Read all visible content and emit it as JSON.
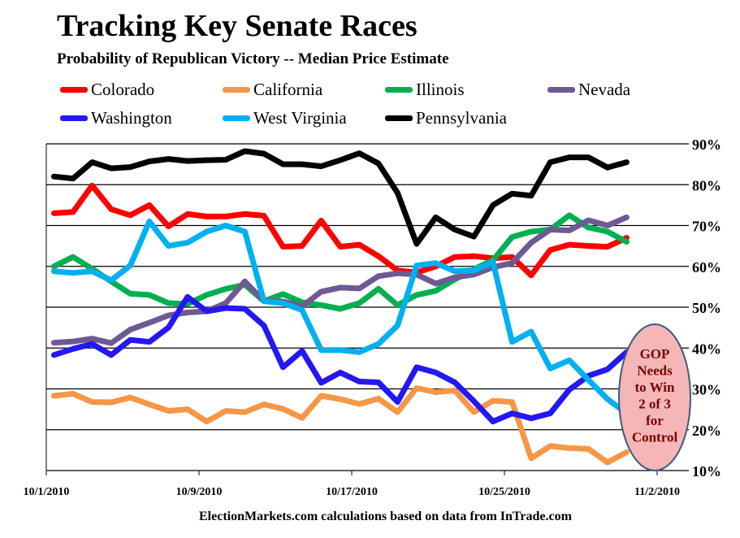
{
  "chart_data": {
    "type": "line",
    "title": "Tracking Key Senate Races",
    "subtitle": "Probability of Republican Victory -- Median Price Estimate",
    "x_tick_labels": [
      "10/1/2010",
      "10/9/2010",
      "10/17/2010",
      "10/25/2010",
      "11/2/2010"
    ],
    "y_tick_labels": [
      "10%",
      "20%",
      "30%",
      "40%",
      "50%",
      "60%",
      "70%",
      "80%",
      "90%"
    ],
    "ylim": [
      10,
      90
    ],
    "y_axis_side": "right",
    "grid": true,
    "legend_position": "top",
    "x": [
      "10/1",
      "10/2",
      "10/3",
      "10/4",
      "10/5",
      "10/6",
      "10/7",
      "10/8",
      "10/9",
      "10/10",
      "10/11",
      "10/12",
      "10/13",
      "10/14",
      "10/15",
      "10/16",
      "10/17",
      "10/18",
      "10/19",
      "10/20",
      "10/21",
      "10/22",
      "10/23",
      "10/24",
      "10/25",
      "10/26",
      "10/27",
      "10/28",
      "10/29",
      "10/30",
      "10/31"
    ],
    "series": [
      {
        "name": "Colorado",
        "color": "#ff0000",
        "values": [
          73,
          73.3,
          79.8,
          74,
          72.5,
          75,
          69.8,
          72.8,
          72.2,
          72.2,
          72.8,
          72.4,
          64.8,
          65,
          71.2,
          64.8,
          65.3,
          62.5,
          59,
          58.5,
          60,
          62.3,
          62.5,
          62,
          62.3,
          57.8,
          64,
          65.3,
          65,
          64.8,
          67
        ]
      },
      {
        "name": "California",
        "color": "#f79646",
        "values": [
          28.3,
          28.8,
          26.8,
          26.7,
          27.9,
          26.2,
          24.6,
          25,
          22,
          24.6,
          24.3,
          26.2,
          25.1,
          22.9,
          28.3,
          27.5,
          26.3,
          27.6,
          24.3,
          30.2,
          29.2,
          29.6,
          24.3,
          27.1,
          26.8,
          13,
          16,
          15.5,
          15.3,
          12,
          14.5
        ]
      },
      {
        "name": "Illinois",
        "color": "#00b050",
        "values": [
          60,
          62.3,
          59.4,
          56.3,
          53.3,
          53,
          51,
          50.8,
          53,
          54.5,
          55.5,
          51.5,
          53.2,
          51.2,
          50.5,
          49.6,
          51,
          54.5,
          50.5,
          53,
          54,
          56.8,
          59.3,
          61.5,
          67.2,
          68.5,
          69,
          72.5,
          69.5,
          68.5,
          66
        ]
      },
      {
        "name": "Nevada",
        "color": "#6e5a93",
        "values": [
          41.3,
          41.6,
          42.3,
          41.2,
          44.5,
          46.2,
          48,
          48.7,
          49,
          51,
          56.3,
          51.5,
          51.4,
          50.2,
          53.8,
          54.8,
          54.6,
          57.6,
          58.3,
          58,
          55.8,
          57.3,
          58,
          59.8,
          60.8,
          65.8,
          69,
          68.8,
          71.3,
          70,
          72
        ]
      },
      {
        "name": "Washington",
        "color": "#2418f2",
        "values": [
          38.3,
          39.8,
          41,
          38.3,
          42,
          41.5,
          45,
          52.5,
          49,
          49.8,
          49.6,
          45.5,
          35.3,
          39.3,
          31.5,
          34,
          31.8,
          31.6,
          26.8,
          35.3,
          34,
          31.6,
          27,
          22,
          24,
          22.8,
          24,
          29.8,
          33.2,
          34.8,
          39
        ]
      },
      {
        "name": "West Virginia",
        "color": "#00b0f0",
        "values": [
          58.8,
          58.4,
          58.8,
          56.6,
          60.2,
          71,
          65,
          65.8,
          68.5,
          70,
          68.5,
          51.5,
          51,
          49.3,
          39.5,
          39.5,
          39,
          41,
          45.5,
          60.2,
          60.8,
          58.8,
          59,
          61,
          41.5,
          44,
          35,
          37,
          32.2,
          27.5,
          24
        ]
      },
      {
        "name": "Pennsylvania",
        "color": "#000000",
        "values": [
          82,
          81.5,
          85.5,
          84,
          84.3,
          85.7,
          86.3,
          85.8,
          86,
          86.1,
          88.2,
          87.6,
          85,
          85,
          84.5,
          86,
          87.7,
          85.2,
          78,
          65.5,
          72,
          69,
          67.3,
          75,
          77.8,
          77.3,
          85.5,
          86.7,
          86.7,
          84.2,
          85.5
        ]
      }
    ],
    "annotation": {
      "lines": [
        "GOP",
        "Needs",
        "to Win",
        "2 of 3",
        "for",
        "Control"
      ],
      "fill": "#f4b6b6",
      "stroke": "#3b5a80",
      "text_color": "#7a0000"
    },
    "source_note": "ElectionMarkets.com calculations based on data from InTrade.com"
  }
}
